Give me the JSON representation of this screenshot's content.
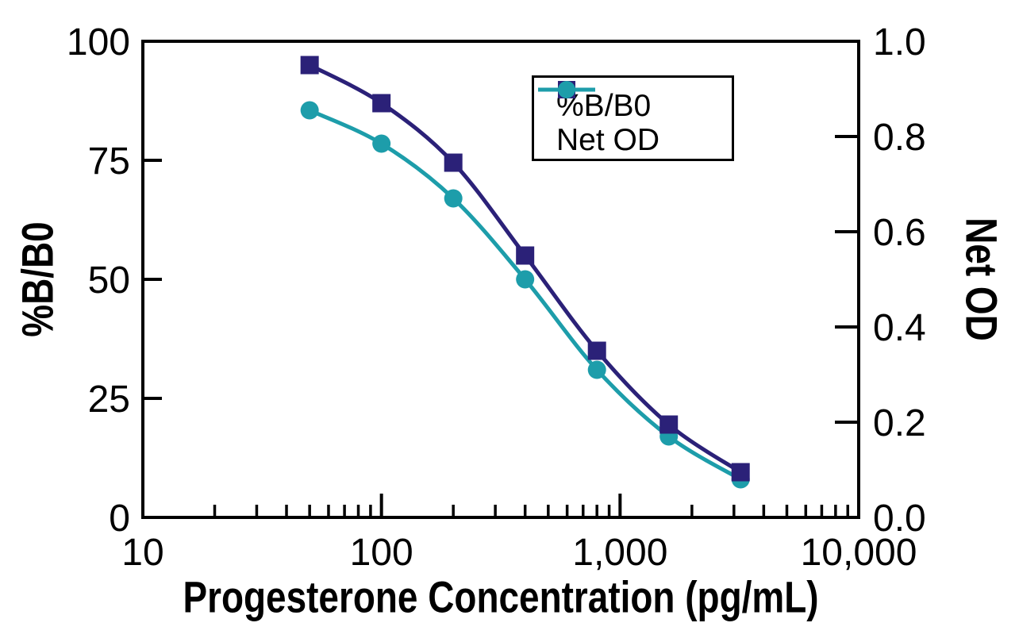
{
  "figure": {
    "background": "#ffffff",
    "axis_color": "#000000",
    "legend": {
      "border_color": "#000000",
      "entries": [
        {
          "label": "%B/B0",
          "marker": "square",
          "color": "#2b2178"
        },
        {
          "label": "Net OD",
          "marker": "circle",
          "color": "#1d9daa"
        }
      ]
    }
  },
  "chart_data": {
    "type": "line",
    "title": "",
    "xlabel": "Progesterone Concentration (pg/mL)",
    "ylabel_left": "%B/B0",
    "ylabel_right": "Net OD",
    "x_scale": "log",
    "x_range": [
      10,
      10000
    ],
    "x_ticks": [
      {
        "value": 10,
        "label": "10"
      },
      {
        "value": 100,
        "label": "100"
      },
      {
        "value": 1000,
        "label": "1,000"
      },
      {
        "value": 10000,
        "label": "10,000"
      }
    ],
    "x": [
      50,
      100,
      200,
      400,
      800,
      1600,
      3200
    ],
    "series": [
      {
        "name": "%B/B0",
        "axis": "left",
        "color": "#2b2178",
        "marker": "square",
        "values": [
          95,
          87,
          74.5,
          55,
          35,
          19.5,
          9.5
        ]
      },
      {
        "name": "Net OD",
        "axis": "right",
        "color": "#1d9daa",
        "marker": "circle",
        "values": [
          0.855,
          0.785,
          0.67,
          0.5,
          0.31,
          0.17,
          0.08
        ]
      }
    ],
    "left_axis": {
      "range": [
        0,
        100
      ],
      "ticks": [
        {
          "value": 0,
          "label": "0"
        },
        {
          "value": 25,
          "label": "25"
        },
        {
          "value": 50,
          "label": "50"
        },
        {
          "value": 75,
          "label": "75"
        },
        {
          "value": 100,
          "label": "100"
        }
      ]
    },
    "right_axis": {
      "range": [
        0,
        1
      ],
      "ticks": [
        {
          "value": 0,
          "label": "0.0"
        },
        {
          "value": 0.2,
          "label": "0.2"
        },
        {
          "value": 0.4,
          "label": "0.4"
        },
        {
          "value": 0.6,
          "label": "0.6"
        },
        {
          "value": 0.8,
          "label": "0.8"
        },
        {
          "value": 1,
          "label": "1.0"
        }
      ]
    },
    "grid": false,
    "legend_position": "top-center-inside"
  }
}
